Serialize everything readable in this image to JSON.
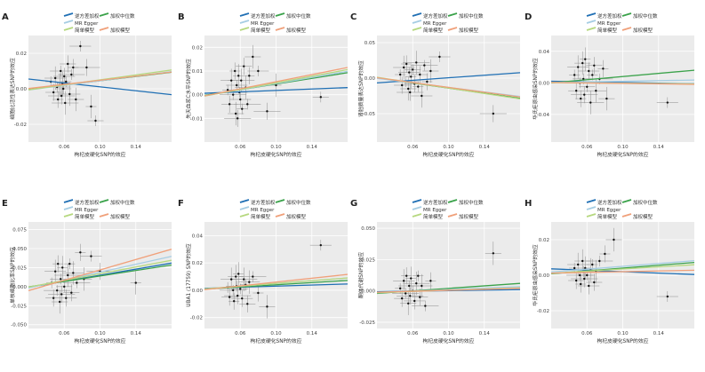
{
  "legend_labels": {
    "ivw": "逆方差加权",
    "wm": "加权中位数",
    "egger": "MR Egger",
    "simple": "简单模型",
    "weighted": "加权模型"
  },
  "colors": {
    "ivw": "#1f6fb4",
    "wm": "#3aa24a",
    "egger": "#a6cde3",
    "simple": "#b6d87f",
    "weighted": "#f0a07a",
    "panel_bg": "#ebebeb",
    "grid": "#ffffff",
    "points": "#111111",
    "error_bars": "#8c8c8c"
  },
  "chart_data": [
    {
      "type": "scatter",
      "panel_label": "A",
      "xlabel": "枸杞皮硬化SNP的效应",
      "ylabel": "细胞比活性表达SNP的效应",
      "x_ticks": [
        "0.06",
        "0.10",
        "0.14"
      ],
      "y_ticks": [
        "-0.02",
        "0.00",
        "0.02"
      ],
      "xlim": [
        0.02,
        0.18
      ],
      "ylim": [
        -0.03,
        0.03
      ],
      "points": [
        [
          0.045,
          0.004
        ],
        [
          0.048,
          -0.002
        ],
        [
          0.05,
          0.006
        ],
        [
          0.052,
          0.001
        ],
        [
          0.053,
          -0.006
        ],
        [
          0.055,
          0.002
        ],
        [
          0.056,
          0.01
        ],
        [
          0.057,
          -0.004
        ],
        [
          0.058,
          0.003
        ],
        [
          0.059,
          0.0
        ],
        [
          0.06,
          0.007
        ],
        [
          0.061,
          -0.008
        ],
        [
          0.062,
          0.004
        ],
        [
          0.064,
          0.014
        ],
        [
          0.066,
          -0.003
        ],
        [
          0.068,
          0.008
        ],
        [
          0.07,
          0.012
        ],
        [
          0.073,
          -0.006
        ],
        [
          0.078,
          0.024
        ],
        [
          0.085,
          0.012
        ],
        [
          0.09,
          -0.01
        ],
        [
          0.095,
          -0.018
        ]
      ],
      "lines": [
        {
          "name": "逆方差加权",
          "key": "ivw",
          "slope": -0.055,
          "intercept": 0.0066
        },
        {
          "name": "加权中位数",
          "key": "wm",
          "slope": 0.06,
          "intercept": -0.0015
        },
        {
          "name": "MR Egger",
          "key": "egger",
          "slope": 0.065,
          "intercept": -0.002
        },
        {
          "name": "简单模型",
          "key": "simple",
          "slope": 0.07,
          "intercept": -0.002
        },
        {
          "name": "加权模型",
          "key": "weighted",
          "slope": 0.058,
          "intercept": -0.001
        }
      ]
    },
    {
      "type": "scatter",
      "panel_label": "B",
      "xlabel": "枸杞皮硬化SNP的效应",
      "ylabel": "先天血浆C水平SNP的效应",
      "x_ticks": [
        "0.06",
        "0.10",
        "0.14"
      ],
      "y_ticks": [
        "-0.01",
        "0.00",
        "0.01",
        "0.02"
      ],
      "xlim": [
        0.02,
        0.18
      ],
      "ylim": [
        -0.02,
        0.025
      ],
      "points": [
        [
          0.046,
          0.002
        ],
        [
          0.048,
          -0.004
        ],
        [
          0.05,
          0.006
        ],
        [
          0.052,
          0.0
        ],
        [
          0.054,
          0.01
        ],
        [
          0.055,
          -0.008
        ],
        [
          0.056,
          0.004
        ],
        [
          0.057,
          -0.01
        ],
        [
          0.058,
          0.008
        ],
        [
          0.059,
          0.001
        ],
        [
          0.06,
          -0.002
        ],
        [
          0.061,
          0.006
        ],
        [
          0.062,
          -0.006
        ],
        [
          0.064,
          0.012
        ],
        [
          0.066,
          0.003
        ],
        [
          0.068,
          -0.004
        ],
        [
          0.07,
          0.008
        ],
        [
          0.074,
          0.016
        ],
        [
          0.08,
          0.01
        ],
        [
          0.09,
          -0.007
        ],
        [
          0.1,
          0.004
        ],
        [
          0.15,
          -0.001
        ]
      ],
      "lines": [
        {
          "name": "逆方差加权",
          "key": "ivw",
          "slope": 0.015,
          "intercept": 0.0003
        },
        {
          "name": "加权中位数",
          "key": "wm",
          "slope": 0.06,
          "intercept": -0.0015
        },
        {
          "name": "MR Egger",
          "key": "egger",
          "slope": 0.065,
          "intercept": -0.0018
        },
        {
          "name": "简单模型",
          "key": "simple",
          "slope": 0.07,
          "intercept": -0.002
        },
        {
          "name": "加权模型",
          "key": "weighted",
          "slope": 0.075,
          "intercept": -0.002
        }
      ]
    },
    {
      "type": "scatter",
      "panel_label": "C",
      "xlabel": "枸杞皮硬化SNP的效应",
      "ylabel": "肾脏质量表达SNP的效应",
      "x_ticks": [
        "0.06",
        "0.10",
        "0.14"
      ],
      "y_ticks": [
        "-0.05",
        "0.00",
        "0.05"
      ],
      "xlim": [
        0.02,
        0.18
      ],
      "ylim": [
        -0.09,
        0.06
      ],
      "points": [
        [
          0.046,
          0.005
        ],
        [
          0.048,
          -0.01
        ],
        [
          0.05,
          0.015
        ],
        [
          0.052,
          -0.005
        ],
        [
          0.053,
          0.02
        ],
        [
          0.055,
          -0.015
        ],
        [
          0.056,
          0.008
        ],
        [
          0.057,
          -0.02
        ],
        [
          0.058,
          0.002
        ],
        [
          0.06,
          0.012
        ],
        [
          0.062,
          -0.008
        ],
        [
          0.064,
          0.022
        ],
        [
          0.066,
          -0.012
        ],
        [
          0.068,
          0.005
        ],
        [
          0.07,
          -0.025
        ],
        [
          0.073,
          0.018
        ],
        [
          0.076,
          -0.005
        ],
        [
          0.08,
          0.01
        ],
        [
          0.09,
          0.03
        ],
        [
          0.15,
          -0.05
        ]
      ],
      "lines": [
        {
          "name": "逆方差加权",
          "key": "ivw",
          "slope": 0.09,
          "intercept": -0.0085
        },
        {
          "name": "加权中位数",
          "key": "wm",
          "slope": -0.18,
          "intercept": 0.004
        },
        {
          "name": "MR Egger",
          "key": "egger",
          "slope": -0.16,
          "intercept": 0.003
        },
        {
          "name": "简单模型",
          "key": "simple",
          "slope": -0.19,
          "intercept": 0.005
        },
        {
          "name": "加权模型",
          "key": "weighted",
          "slope": -0.17,
          "intercept": 0.004
        }
      ]
    },
    {
      "type": "scatter",
      "panel_label": "D",
      "xlabel": "枸杞皮硬化SNP的效应",
      "ylabel": "华氏疟原虫感染SNP的效应",
      "x_ticks": [
        "0.06",
        "0.10",
        "0.14"
      ],
      "y_ticks": [
        "-0.04",
        "0.00",
        "0.04"
      ],
      "xlim": [
        0.02,
        0.18
      ],
      "ylim": [
        -0.075,
        0.06
      ],
      "points": [
        [
          0.046,
          0.01
        ],
        [
          0.048,
          -0.01
        ],
        [
          0.05,
          0.02
        ],
        [
          0.052,
          0.0
        ],
        [
          0.053,
          -0.02
        ],
        [
          0.055,
          0.025
        ],
        [
          0.056,
          0.005
        ],
        [
          0.057,
          -0.015
        ],
        [
          0.058,
          0.03
        ],
        [
          0.06,
          -0.005
        ],
        [
          0.062,
          0.015
        ],
        [
          0.064,
          -0.025
        ],
        [
          0.066,
          0.01
        ],
        [
          0.068,
          0.022
        ],
        [
          0.07,
          -0.01
        ],
        [
          0.074,
          0.005
        ],
        [
          0.078,
          0.018
        ],
        [
          0.082,
          -0.02
        ],
        [
          0.15,
          -0.025
        ]
      ],
      "lines": [
        {
          "name": "逆方差加权",
          "key": "ivw",
          "slope": -0.02,
          "intercept": 0.0025
        },
        {
          "name": "加权中位数",
          "key": "wm",
          "slope": 0.1,
          "intercept": -0.002
        },
        {
          "name": "MR Egger",
          "key": "egger",
          "slope": 0.02,
          "intercept": 0.0
        },
        {
          "name": "简单模型",
          "key": "simple",
          "slope": -0.01,
          "intercept": 0.0005
        },
        {
          "name": "加权模型",
          "key": "weighted",
          "slope": -0.015,
          "intercept": 0.0008
        }
      ]
    },
    {
      "type": "scatter",
      "panel_label": "E",
      "xlabel": "枸杞皮硬化SNP的效应",
      "ylabel": "单核细胞比率SNP的效应",
      "x_ticks": [
        "0.06",
        "0.10",
        "0.14"
      ],
      "y_ticks": [
        "-0.050",
        "-0.025",
        "0.000",
        "0.025",
        "0.050",
        "0.075"
      ],
      "xlim": [
        0.02,
        0.18
      ],
      "ylim": [
        -0.055,
        0.085
      ],
      "points": [
        [
          0.046,
          0.005
        ],
        [
          0.048,
          -0.015
        ],
        [
          0.05,
          0.02
        ],
        [
          0.052,
          -0.005
        ],
        [
          0.053,
          0.03
        ],
        [
          0.055,
          -0.02
        ],
        [
          0.056,
          0.01
        ],
        [
          0.057,
          -0.01
        ],
        [
          0.058,
          0.025
        ],
        [
          0.06,
          0.0
        ],
        [
          0.062,
          -0.015
        ],
        [
          0.064,
          0.015
        ],
        [
          0.066,
          0.03
        ],
        [
          0.068,
          -0.008
        ],
        [
          0.07,
          0.018
        ],
        [
          0.074,
          0.005
        ],
        [
          0.078,
          0.045
        ],
        [
          0.082,
          0.01
        ],
        [
          0.09,
          0.04
        ],
        [
          0.1,
          0.02
        ],
        [
          0.14,
          0.005
        ]
      ],
      "lines": [
        {
          "name": "逆方差加权",
          "key": "ivw",
          "slope": 0.2,
          "intercept": -0.005
        },
        {
          "name": "加权中位数",
          "key": "wm",
          "slope": 0.18,
          "intercept": -0.004
        },
        {
          "name": "MR Egger",
          "key": "egger",
          "slope": 0.26,
          "intercept": -0.007
        },
        {
          "name": "简单模型",
          "key": "simple",
          "slope": 0.22,
          "intercept": -0.005
        },
        {
          "name": "加权模型",
          "key": "weighted",
          "slope": 0.34,
          "intercept": -0.012
        }
      ]
    },
    {
      "type": "scatter",
      "panel_label": "F",
      "xlabel": "枸杞皮硬化SNP的效应",
      "ylabel": "UBA1 (17759) SNP的效应",
      "x_ticks": [
        "0.06",
        "0.10",
        "0.14"
      ],
      "y_ticks": [
        "-0.02",
        "0.00",
        "0.02",
        "0.04"
      ],
      "xlim": [
        0.02,
        0.18
      ],
      "ylim": [
        -0.028,
        0.05
      ],
      "points": [
        [
          0.046,
          0.002
        ],
        [
          0.048,
          -0.005
        ],
        [
          0.05,
          0.008
        ],
        [
          0.052,
          0.0
        ],
        [
          0.053,
          -0.008
        ],
        [
          0.055,
          0.01
        ],
        [
          0.056,
          0.003
        ],
        [
          0.057,
          -0.004
        ],
        [
          0.058,
          0.012
        ],
        [
          0.06,
          0.001
        ],
        [
          0.062,
          -0.006
        ],
        [
          0.064,
          0.008
        ],
        [
          0.066,
          0.004
        ],
        [
          0.068,
          -0.01
        ],
        [
          0.07,
          0.006
        ],
        [
          0.074,
          0.01
        ],
        [
          0.08,
          -0.002
        ],
        [
          0.09,
          -0.012
        ],
        [
          0.15,
          0.033
        ]
      ],
      "lines": [
        {
          "name": "逆方差加权",
          "key": "ivw",
          "slope": 0.02,
          "intercept": 0.001
        },
        {
          "name": "加权中位数",
          "key": "wm",
          "slope": 0.04,
          "intercept": 0.0
        },
        {
          "name": "MR Egger",
          "key": "egger",
          "slope": 0.05,
          "intercept": 0.0
        },
        {
          "name": "简单模型",
          "key": "simple",
          "slope": 0.05,
          "intercept": 0.0
        },
        {
          "name": "加权模型",
          "key": "weighted",
          "slope": 0.07,
          "intercept": -0.001
        }
      ]
    },
    {
      "type": "scatter",
      "panel_label": "G",
      "xlabel": "枸杞皮硬化SNP的效应",
      "ylabel": "酮体代谢SNP的效应",
      "x_ticks": [
        "0.06",
        "0.10",
        "0.14"
      ],
      "y_ticks": [
        "-0.025",
        "0.000",
        "0.025",
        "0.050"
      ],
      "xlim": [
        0.02,
        0.18
      ],
      "ylim": [
        -0.03,
        0.055
      ],
      "points": [
        [
          0.046,
          0.002
        ],
        [
          0.048,
          -0.006
        ],
        [
          0.05,
          0.008
        ],
        [
          0.052,
          -0.002
        ],
        [
          0.053,
          0.012
        ],
        [
          0.055,
          -0.01
        ],
        [
          0.056,
          0.004
        ],
        [
          0.057,
          -0.004
        ],
        [
          0.058,
          0.01
        ],
        [
          0.06,
          0.0
        ],
        [
          0.062,
          -0.008
        ],
        [
          0.064,
          0.006
        ],
        [
          0.066,
          0.012
        ],
        [
          0.068,
          -0.005
        ],
        [
          0.07,
          0.004
        ],
        [
          0.074,
          -0.012
        ],
        [
          0.08,
          0.008
        ],
        [
          0.15,
          0.03
        ]
      ],
      "lines": [
        {
          "name": "逆方差加权",
          "key": "ivw",
          "slope": 0.01,
          "intercept": -0.0008
        },
        {
          "name": "加权中位数",
          "key": "wm",
          "slope": 0.05,
          "intercept": -0.003
        },
        {
          "name": "MR Egger",
          "key": "egger",
          "slope": 0.03,
          "intercept": -0.002
        },
        {
          "name": "简单模型",
          "key": "simple",
          "slope": 0.025,
          "intercept": -0.002
        },
        {
          "name": "加权模型",
          "key": "weighted",
          "slope": 0.02,
          "intercept": -0.0015
        }
      ]
    },
    {
      "type": "scatter",
      "panel_label": "H",
      "xlabel": "枸杞皮硬化SNP的效应",
      "ylabel": "华氏疟原虫感染SNP的效应",
      "x_ticks": [
        "0.06",
        "0.10",
        "0.14"
      ],
      "y_ticks": [
        "-0.02",
        "0.00",
        "0.02"
      ],
      "xlim": [
        0.02,
        0.18
      ],
      "ylim": [
        -0.03,
        0.03
      ],
      "points": [
        [
          0.046,
          0.004
        ],
        [
          0.048,
          -0.003
        ],
        [
          0.05,
          0.006
        ],
        [
          0.052,
          0.0
        ],
        [
          0.053,
          -0.005
        ],
        [
          0.055,
          0.008
        ],
        [
          0.056,
          0.002
        ],
        [
          0.057,
          -0.002
        ],
        [
          0.058,
          0.004
        ],
        [
          0.06,
          0.0
        ],
        [
          0.062,
          -0.006
        ],
        [
          0.064,
          0.003
        ],
        [
          0.066,
          0.006
        ],
        [
          0.068,
          -0.004
        ],
        [
          0.07,
          0.002
        ],
        [
          0.074,
          0.008
        ],
        [
          0.08,
          0.012
        ],
        [
          0.09,
          0.02
        ],
        [
          0.15,
          -0.012
        ]
      ],
      "lines": [
        {
          "name": "逆方差加权",
          "key": "ivw",
          "slope": -0.02,
          "intercept": 0.004
        },
        {
          "name": "加权中位数",
          "key": "wm",
          "slope": 0.04,
          "intercept": 0.0
        },
        {
          "name": "MR Egger",
          "key": "egger",
          "slope": 0.04,
          "intercept": 0.001
        },
        {
          "name": "简单模型",
          "key": "simple",
          "slope": 0.03,
          "intercept": 0.0005
        },
        {
          "name": "加权模型",
          "key": "weighted",
          "slope": 0.01,
          "intercept": 0.001
        }
      ]
    }
  ]
}
